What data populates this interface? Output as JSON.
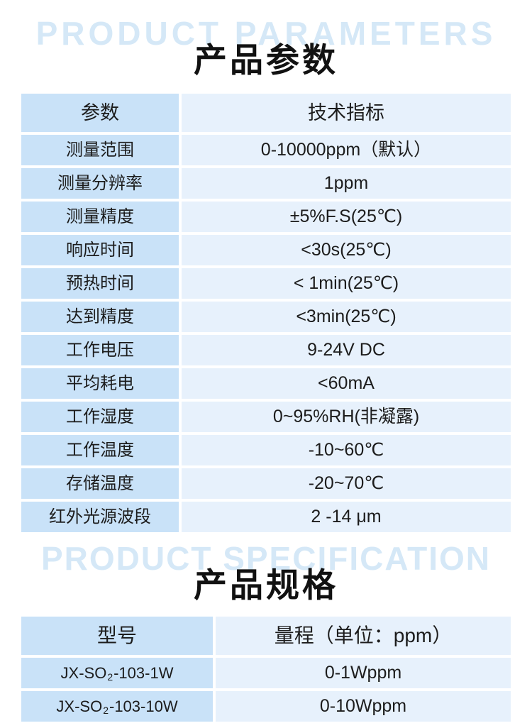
{
  "colors": {
    "watermark": "#d5e8f7",
    "title": "#111111",
    "cell_left_bg": "#c9e2f8",
    "cell_right_bg": "#e7f1fc",
    "text": "#1c1c1c"
  },
  "sections": {
    "parameters": {
      "watermark": "PRODUCT PARAMETERS",
      "title": "产品参数",
      "table": {
        "headers": [
          "参数",
          "技术指标"
        ],
        "rows": [
          {
            "label": "测量范围",
            "value": "0-10000ppm（默认）"
          },
          {
            "label": "测量分辨率",
            "value": "1ppm"
          },
          {
            "label": "测量精度",
            "value": "±5%F.S(25℃)"
          },
          {
            "label": "响应时间",
            "value": "<30s(25℃)"
          },
          {
            "label": "预热时间",
            "value": "< 1min(25℃)"
          },
          {
            "label": "达到精度",
            "value": "<3min(25℃)"
          },
          {
            "label": "工作电压",
            "value": "9-24V DC"
          },
          {
            "label": "平均耗电",
            "value": "<60mA"
          },
          {
            "label": "工作湿度",
            "value": "0~95%RH(非凝露)"
          },
          {
            "label": "工作温度",
            "value": "-10~60℃"
          },
          {
            "label": "存储温度",
            "value": "-20~70℃"
          },
          {
            "label": "红外光源波段",
            "value": "2 -14 μm"
          }
        ]
      }
    },
    "specification": {
      "watermark": "PRODUCT SPECIFICATION",
      "title": "产品规格",
      "table": {
        "headers": [
          "型号",
          "量程（单位：ppm）"
        ],
        "rows": [
          {
            "model_prefix": "JX-SO",
            "model_sub": "2",
            "model_suffix": "-103-1W",
            "range": "0-1Wppm"
          },
          {
            "model_prefix": "JX-SO",
            "model_sub": "2",
            "model_suffix": "-103-10W",
            "range": "0-10Wppm"
          }
        ]
      }
    }
  }
}
